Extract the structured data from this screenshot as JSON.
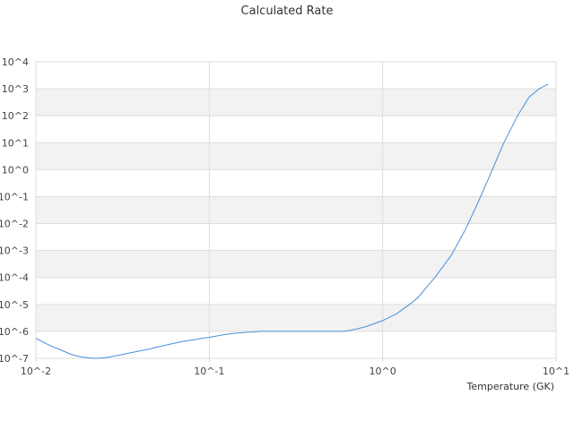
{
  "chart_data": {
    "type": "line",
    "title": "Calculated Rate",
    "xlabel": "Temperature (GK)",
    "ylabel": "",
    "x_scale": "log",
    "y_scale": "log",
    "xlim": [
      0.01,
      10
    ],
    "ylim": [
      1e-07,
      10000
    ],
    "x_tick_labels": [
      "10^-2",
      "10^-1",
      "10^0",
      "10^1"
    ],
    "y_tick_labels": [
      "10^-7",
      "10^-6",
      "10^-5",
      "10^-4",
      "10^-3",
      "10^-2",
      "10^-1",
      "10^0",
      "10^1",
      "10^2",
      "10^3",
      "10^4"
    ],
    "grid": "alternating horizontal bands",
    "legend": "none",
    "colors": {
      "line": "#4a90d9",
      "band": "#f2f2f2",
      "grid": "#dddddd"
    },
    "series": [
      {
        "x": [
          0.01,
          0.012,
          0.014,
          0.016,
          0.018,
          0.02,
          0.022,
          0.025,
          0.03,
          0.035,
          0.04,
          0.045,
          0.05,
          0.06,
          0.07,
          0.08,
          0.09,
          0.1,
          0.12,
          0.14,
          0.17,
          0.2,
          0.25,
          0.3,
          0.4,
          0.5,
          0.6,
          0.7,
          0.8,
          1.0,
          1.2,
          1.4,
          1.6,
          1.8,
          2.0,
          2.5,
          3.0,
          3.5,
          4.0,
          5.0,
          6.0,
          7.0,
          8.0,
          9.0
        ],
        "y": [
          5.5e-07,
          3e-07,
          2e-07,
          1.4e-07,
          1.15e-07,
          1.05e-07,
          1e-07,
          1.05e-07,
          1.3e-07,
          1.6e-07,
          1.9e-07,
          2.2e-07,
          2.6e-07,
          3.4e-07,
          4.2e-07,
          4.8e-07,
          5.5e-07,
          6e-07,
          7.5e-07,
          8.5e-07,
          9.4e-07,
          1e-06,
          1e-06,
          1e-06,
          1e-06,
          1e-06,
          1e-06,
          1.2e-06,
          1.5e-06,
          2.5e-06,
          4.5e-06,
          9e-06,
          1.8e-05,
          4.5e-05,
          0.0001,
          0.0007,
          0.006,
          0.05,
          0.35,
          10.0,
          100.0,
          500.0,
          1000.0,
          1500.0
        ]
      }
    ]
  }
}
